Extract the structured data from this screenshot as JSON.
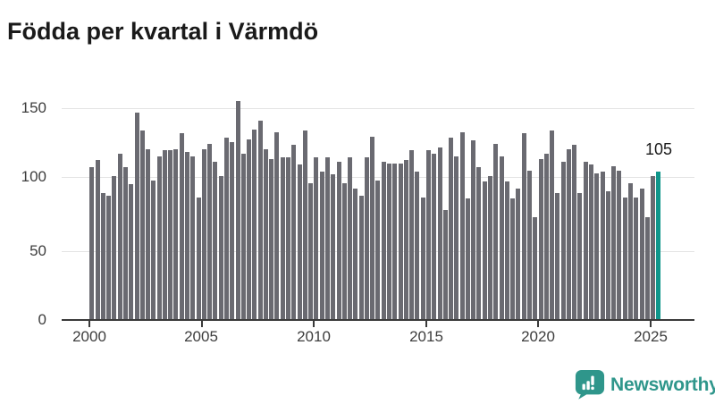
{
  "title": "Födda per kvartal i Värmdö",
  "chart_data": {
    "type": "bar",
    "x_start": "2000-Q1",
    "x_end": "2025-Q2",
    "values": [
      108,
      113,
      90,
      88,
      102,
      118,
      108,
      96,
      147,
      134,
      121,
      99,
      116,
      120,
      120,
      121,
      132,
      119,
      116,
      87,
      121,
      125,
      112,
      102,
      129,
      126,
      155,
      118,
      128,
      135,
      141,
      121,
      114,
      133,
      115,
      115,
      124,
      110,
      134,
      97,
      115,
      105,
      115,
      103,
      112,
      97,
      115,
      93,
      88,
      115,
      130,
      99,
      112,
      111,
      111,
      111,
      113,
      120,
      105,
      87,
      120,
      118,
      122,
      78,
      129,
      116,
      133,
      86,
      127,
      108,
      98,
      102,
      125,
      116,
      98,
      86,
      93,
      132,
      106,
      73,
      114,
      118,
      134,
      90,
      112,
      121,
      124,
      90,
      112,
      110,
      104,
      105,
      91,
      109,
      106,
      87,
      97,
      87,
      93,
      73,
      102,
      105
    ],
    "highlight_index": 101,
    "annotation": {
      "text": "105",
      "value": 105
    },
    "yticks": [
      "0",
      "50",
      "100",
      "150"
    ],
    "xticks": [
      "2000",
      "2005",
      "2010",
      "2015",
      "2020",
      "2025"
    ],
    "ylim": [
      0,
      150
    ],
    "grid": "horizontal",
    "legend": "none",
    "bar_color": "#6a6a71",
    "highlight_color": "#0f968b"
  },
  "footer": {
    "logo_text": "Newsworthy",
    "logo_color": "#2f968b"
  }
}
